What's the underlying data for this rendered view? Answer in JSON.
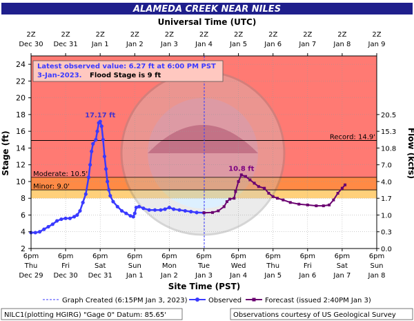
{
  "header": {
    "title": "ALAMEDA CREEK NEAR NILES",
    "top_axis_title": "Universal Time (UTC)",
    "bottom_axis_title": "Site Time (PST)",
    "left_axis_title": "Stage (ft)",
    "right_axis_title": "Flow (kcfs)"
  },
  "latest": {
    "line1": "Latest observed value: 6.27 ft at 6:00 PM PST",
    "line2": "3-Jan-2023.",
    "flood": "Flood Stage is 9 ft"
  },
  "thresholds": {
    "record_label": "Record: 14.9'",
    "moderate_label": "Moderate: 10.5'",
    "minor_label": "Minor: 9.0'"
  },
  "legend": {
    "graph_created": "Graph Created (6:15PM Jan 3, 2023)",
    "observed": "Observed",
    "forecast": "Forecast (issued 2:40PM Jan 3)"
  },
  "footer": {
    "left": "NILC1(plotting HGIRG) \"Gage 0\" Datum: 85.65'",
    "right": "Observations courtesy of US Geological Survey"
  },
  "colors": {
    "title_bg": "#1f1f8c",
    "record_zone": "#ff7a73",
    "moderate_zone": "#ff8a45",
    "minor_zone": "#ffd07a",
    "normal_zone": "#ffffff",
    "observed": "#3a3aff",
    "forecast": "#6a0070",
    "peak_label": "#4433cc",
    "forecast_label": "#7a0080",
    "watermark": "#c8c8c8"
  },
  "chart_data": {
    "type": "line",
    "x_unit": "hours since Dec 29 6pm PST",
    "ylim": [
      2,
      25
    ],
    "xlim": [
      0,
      240
    ],
    "yticks": [
      2,
      4,
      6,
      8,
      10,
      12,
      14,
      16,
      18,
      20,
      22,
      24
    ],
    "bottom_ticks": [
      {
        "x": 0,
        "l1": "6pm",
        "l2": "Thu",
        "l3": "Dec 29"
      },
      {
        "x": 24,
        "l1": "6pm",
        "l2": "Fri",
        "l3": "Dec 30"
      },
      {
        "x": 48,
        "l1": "6pm",
        "l2": "Sat",
        "l3": "Dec 31"
      },
      {
        "x": 72,
        "l1": "6pm",
        "l2": "Sun",
        "l3": "Jan 1"
      },
      {
        "x": 96,
        "l1": "6pm",
        "l2": "Mon",
        "l3": "Jan 2"
      },
      {
        "x": 120,
        "l1": "6pm",
        "l2": "Tue",
        "l3": "Jan 3"
      },
      {
        "x": 144,
        "l1": "6pm",
        "l2": "Wed",
        "l3": "Jan 4"
      },
      {
        "x": 168,
        "l1": "6pm",
        "l2": "Thu",
        "l3": "Jan 5"
      },
      {
        "x": 192,
        "l1": "6pm",
        "l2": "Fri",
        "l3": "Jan 6"
      },
      {
        "x": 216,
        "l1": "6pm",
        "l2": "Sat",
        "l3": "Jan 7"
      },
      {
        "x": 240,
        "l1": "6pm",
        "l2": "Sun",
        "l3": "Jan 8"
      }
    ],
    "top_ticks": [
      {
        "x": 0,
        "l1": "2Z",
        "l2": "Dec 30"
      },
      {
        "x": 24,
        "l1": "2Z",
        "l2": "Dec 31"
      },
      {
        "x": 48,
        "l1": "2Z",
        "l2": "Jan 1"
      },
      {
        "x": 72,
        "l1": "2Z",
        "l2": "Jan 2"
      },
      {
        "x": 96,
        "l1": "2Z",
        "l2": "Jan 3"
      },
      {
        "x": 120,
        "l1": "2Z",
        "l2": "Jan 4"
      },
      {
        "x": 144,
        "l1": "2Z",
        "l2": "Jan 5"
      },
      {
        "x": 168,
        "l1": "2Z",
        "l2": "Jan 6"
      },
      {
        "x": 192,
        "l1": "2Z",
        "l2": "Jan 7"
      },
      {
        "x": 216,
        "l1": "2Z",
        "l2": "Jan 8"
      },
      {
        "x": 240,
        "l1": "2Z",
        "l2": "Jan 9"
      }
    ],
    "flow_ticks": [
      {
        "stage": 2.0,
        "label": "0.0"
      },
      {
        "stage": 4.0,
        "label": "0.3"
      },
      {
        "stage": 6.0,
        "label": "1.0"
      },
      {
        "stage": 8.0,
        "label": "1.7"
      },
      {
        "stage": 10.0,
        "label": "4.0"
      },
      {
        "stage": 12.0,
        "label": "7.0"
      },
      {
        "stage": 14.0,
        "label": "10.8"
      },
      {
        "stage": 16.0,
        "label": "15.3"
      },
      {
        "stage": 18.0,
        "label": "20.5"
      }
    ],
    "flood_categories": {
      "record": 14.9,
      "moderate": 10.5,
      "minor": 9.0
    },
    "graph_created_x": 120.25,
    "observed": [
      [
        0,
        3.9
      ],
      [
        3,
        3.9
      ],
      [
        6,
        4.0
      ],
      [
        9,
        4.3
      ],
      [
        12,
        4.6
      ],
      [
        15,
        4.9
      ],
      [
        18,
        5.3
      ],
      [
        21,
        5.5
      ],
      [
        24,
        5.6
      ],
      [
        27,
        5.6
      ],
      [
        30,
        5.8
      ],
      [
        32,
        6.0
      ],
      [
        34,
        6.5
      ],
      [
        36,
        7.5
      ],
      [
        38,
        8.5
      ],
      [
        40,
        10.5
      ],
      [
        41,
        12.0
      ],
      [
        42,
        13.6
      ],
      [
        43,
        14.5
      ],
      [
        45,
        15.0
      ],
      [
        46,
        16.0
      ],
      [
        47,
        17.0
      ],
      [
        48,
        17.17
      ],
      [
        49,
        16.6
      ],
      [
        50,
        15.0
      ],
      [
        51,
        13.0
      ],
      [
        52,
        11.5
      ],
      [
        53,
        10.0
      ],
      [
        54,
        9.0
      ],
      [
        55,
        8.3
      ],
      [
        57,
        7.6
      ],
      [
        60,
        7.0
      ],
      [
        63,
        6.5
      ],
      [
        66,
        6.2
      ],
      [
        69,
        5.9
      ],
      [
        71,
        5.8
      ],
      [
        72,
        6.2
      ],
      [
        73,
        6.9
      ],
      [
        75,
        7.0
      ],
      [
        78,
        6.8
      ],
      [
        82,
        6.6
      ],
      [
        86,
        6.6
      ],
      [
        90,
        6.6
      ],
      [
        93,
        6.7
      ],
      [
        96,
        6.9
      ],
      [
        99,
        6.7
      ],
      [
        103,
        6.6
      ],
      [
        107,
        6.5
      ],
      [
        111,
        6.4
      ],
      [
        115,
        6.3
      ],
      [
        120,
        6.27
      ]
    ],
    "forecast": [
      [
        120,
        6.27
      ],
      [
        126,
        6.3
      ],
      [
        130,
        6.5
      ],
      [
        134,
        7.0
      ],
      [
        136,
        7.6
      ],
      [
        138,
        7.9
      ],
      [
        141,
        8.0
      ],
      [
        142,
        8.8
      ],
      [
        144,
        10.0
      ],
      [
        146,
        10.8
      ],
      [
        149,
        10.6
      ],
      [
        152,
        10.2
      ],
      [
        155,
        9.8
      ],
      [
        158,
        9.4
      ],
      [
        162,
        9.2
      ],
      [
        165,
        8.6
      ],
      [
        168,
        8.2
      ],
      [
        171,
        8.0
      ],
      [
        175,
        7.8
      ],
      [
        180,
        7.5
      ],
      [
        186,
        7.3
      ],
      [
        192,
        7.2
      ],
      [
        198,
        7.1
      ],
      [
        203,
        7.1
      ],
      [
        207,
        7.2
      ],
      [
        210,
        7.8
      ],
      [
        213,
        8.6
      ],
      [
        216,
        9.2
      ],
      [
        218,
        9.6
      ]
    ],
    "peak_observed": {
      "x": 48,
      "y": 17.17,
      "label": "17.17 ft"
    },
    "peak_forecast": {
      "x": 146,
      "y": 10.8,
      "label": "10.8 ft"
    }
  }
}
